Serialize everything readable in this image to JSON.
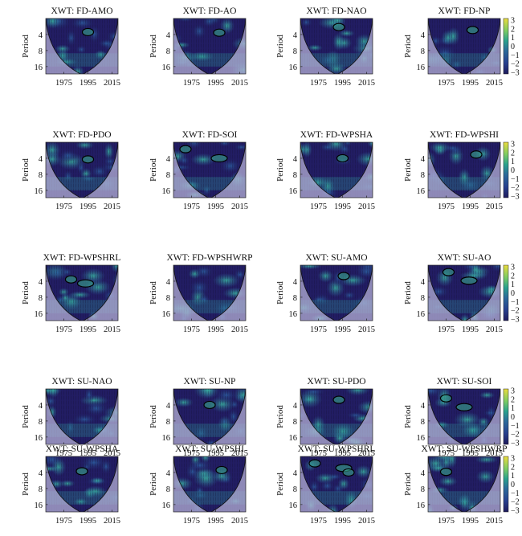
{
  "chart_data": {
    "type": "heatmap",
    "ylabel": "Period",
    "x_ticks": [
      "1975",
      "1995",
      "2015"
    ],
    "y_ticks": [
      "4",
      "8",
      "16"
    ],
    "colorbar_ticks": [
      "3",
      "2",
      "1",
      "0",
      "−1",
      "−2",
      "−3"
    ],
    "colors": {
      "low": "#1e1a5c",
      "mid": "#2c6b9b",
      "high": "#eadc3e",
      "coi_shade": "#b9b3d9"
    },
    "panels": [
      {
        "title": "XWT: FD-AMO",
        "contours": [
          [
            1995,
            3.6
          ]
        ]
      },
      {
        "title": "XWT: FD-AO",
        "contours": [
          [
            1998,
            3.7
          ]
        ]
      },
      {
        "title": "XWT: FD-NAO",
        "contours": [
          [
            1992,
            2.9
          ]
        ]
      },
      {
        "title": "XWT: FD-NP",
        "contours": [
          [
            1997,
            3.3
          ]
        ]
      },
      {
        "title": "XWT: FD-PDO",
        "contours": [
          [
            1995,
            4.2
          ]
        ]
      },
      {
        "title": "XWT: FD-SOI",
        "contours": [
          [
            1970,
            2.7
          ],
          [
            1998,
            4.0
          ]
        ]
      },
      {
        "title": "XWT: FD-WPSHA",
        "contours": [
          [
            1995,
            4.0
          ]
        ]
      },
      {
        "title": "XWT: FD-WPSHI",
        "contours": [
          [
            2000,
            3.4
          ]
        ]
      },
      {
        "title": "XWT: FD-WPSHRL",
        "contours": [
          [
            1981,
            3.7
          ],
          [
            1993,
            4.4
          ]
        ]
      },
      {
        "title": "XWT: FD-WPSHWRP",
        "contours": []
      },
      {
        "title": "XWT: SU-AMO",
        "contours": [
          [
            1996,
            3.2
          ]
        ]
      },
      {
        "title": "XWT: SU-AO",
        "contours": [
          [
            1977,
            2.7
          ],
          [
            1994,
            3.9
          ]
        ]
      },
      {
        "title": "XWT: SU-NAO",
        "contours": []
      },
      {
        "title": "XWT: SU-NP",
        "contours": [
          [
            1990,
            4.0
          ]
        ]
      },
      {
        "title": "XWT: SU-PDO",
        "contours": [
          [
            1992,
            3.2
          ]
        ]
      },
      {
        "title": "XWT: SU-SOI",
        "contours": [
          [
            1975,
            3.0
          ],
          [
            1990,
            4.4
          ]
        ]
      },
      {
        "title": "XWT: SU-WPSHA",
        "contours": [
          [
            1990,
            3.8
          ]
        ]
      },
      {
        "title": "XWT: SU-WPSHI",
        "contours": [
          [
            2000,
            3.6
          ]
        ]
      },
      {
        "title": "XWT: SU-WPSHRL",
        "contours": [
          [
            1972,
            2.7
          ],
          [
            1996,
            3.3
          ],
          [
            2000,
            4.0
          ]
        ]
      },
      {
        "title": "XWT: SU-WPSHWRP",
        "contours": [
          [
            1975,
            3.9
          ]
        ]
      }
    ]
  }
}
